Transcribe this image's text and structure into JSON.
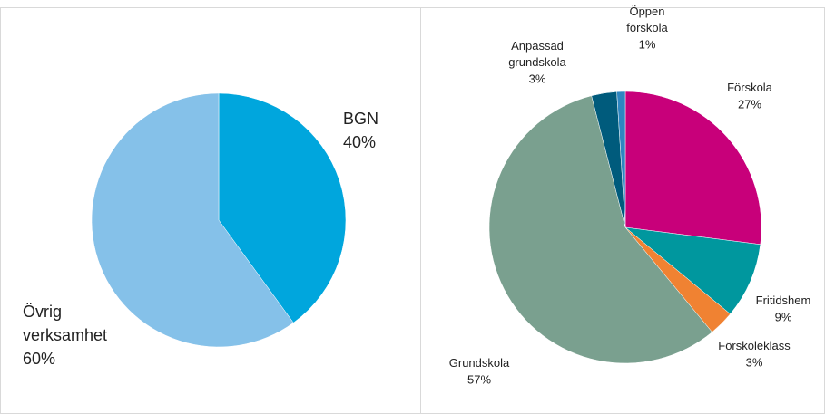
{
  "chart_data": [
    {
      "type": "pie",
      "categories": [
        "BGN",
        "Övrig verksamhet"
      ],
      "values": [
        40,
        60
      ],
      "value_labels": [
        "40%",
        "60%"
      ],
      "colors": [
        "#00a6dd",
        "#85c1e9"
      ]
    },
    {
      "type": "pie",
      "categories": [
        "Förskola",
        "Fritidshem",
        "Förskoleklass",
        "Grundskola",
        "Anpassad grundskola",
        "Öppen förskola"
      ],
      "values": [
        27,
        9,
        3,
        57,
        3,
        1
      ],
      "value_labels": [
        "27%",
        "9%",
        "3%",
        "57%",
        "3%",
        "1%"
      ],
      "colors": [
        "#c8007a",
        "#00979e",
        "#f08232",
        "#7aa08f",
        "#005b7c",
        "#2e86c1"
      ]
    }
  ]
}
